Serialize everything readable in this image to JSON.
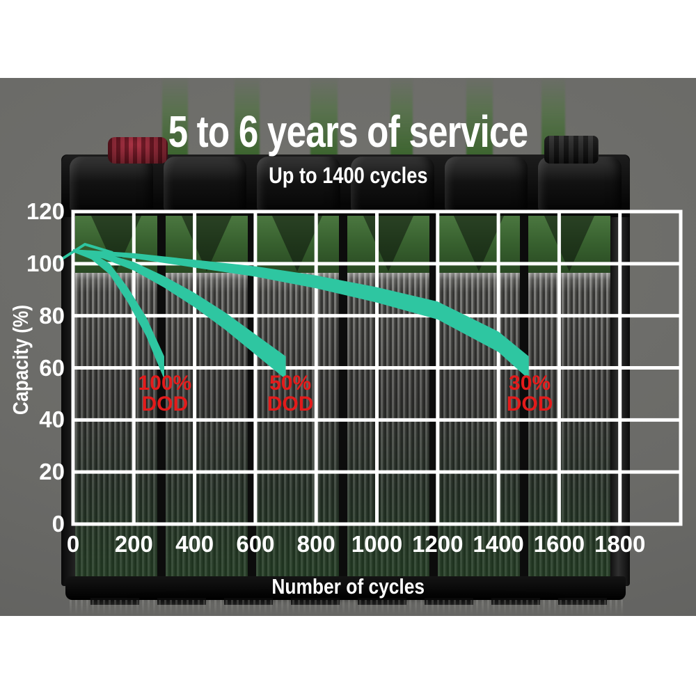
{
  "header": {
    "title": "5 to 6 years of service",
    "subtitle": "Up to 1400 cycles"
  },
  "chart_data": {
    "type": "area",
    "title": "5 to 6 years of service",
    "subtitle": "Up to 1400 cycles",
    "xlabel": "Number of cycles",
    "ylabel": "Capacity (%)",
    "xlim": [
      0,
      2000
    ],
    "ylim": [
      0,
      120
    ],
    "grid": true,
    "legend": "none",
    "xticks": [
      "0",
      "200",
      "400",
      "600",
      "800",
      "1000",
      "1200",
      "1400",
      "1600",
      "1800"
    ],
    "yticks": [
      "120",
      "100",
      "80",
      "60",
      "40",
      "20",
      "0"
    ],
    "series": [
      {
        "name": "100% DOD",
        "x": [
          0,
          60,
          120,
          180,
          240,
          300
        ],
        "y": [
          105,
          103,
          98,
          88,
          76,
          60
        ]
      },
      {
        "name": "50% DOD",
        "x": [
          0,
          100,
          200,
          300,
          400,
          500,
          600,
          700
        ],
        "y": [
          105,
          103,
          99,
          93,
          86,
          78,
          69,
          60
        ]
      },
      {
        "name": "30% DOD",
        "x": [
          0,
          200,
          400,
          600,
          800,
          1000,
          1200,
          1400,
          1500
        ],
        "y": [
          105,
          103,
          100,
          97,
          93,
          88,
          82,
          70,
          60
        ]
      }
    ],
    "annotations": [
      {
        "line1": "100%",
        "line2": "DOD",
        "x": 302,
        "y": 50
      },
      {
        "line1": "50%",
        "line2": "DOD",
        "x": 715,
        "y": 50
      },
      {
        "line1": "30%",
        "line2": "DOD",
        "x": 1503,
        "y": 50
      }
    ],
    "colors": {
      "band": "#2ec6a1",
      "annotation": "#e31b1b",
      "grid": "#ffffff",
      "text": "#ffffff",
      "backdrop": "#6a6a67",
      "battery_green": "#37602e",
      "plate_gray": "#4e4e4b"
    }
  }
}
